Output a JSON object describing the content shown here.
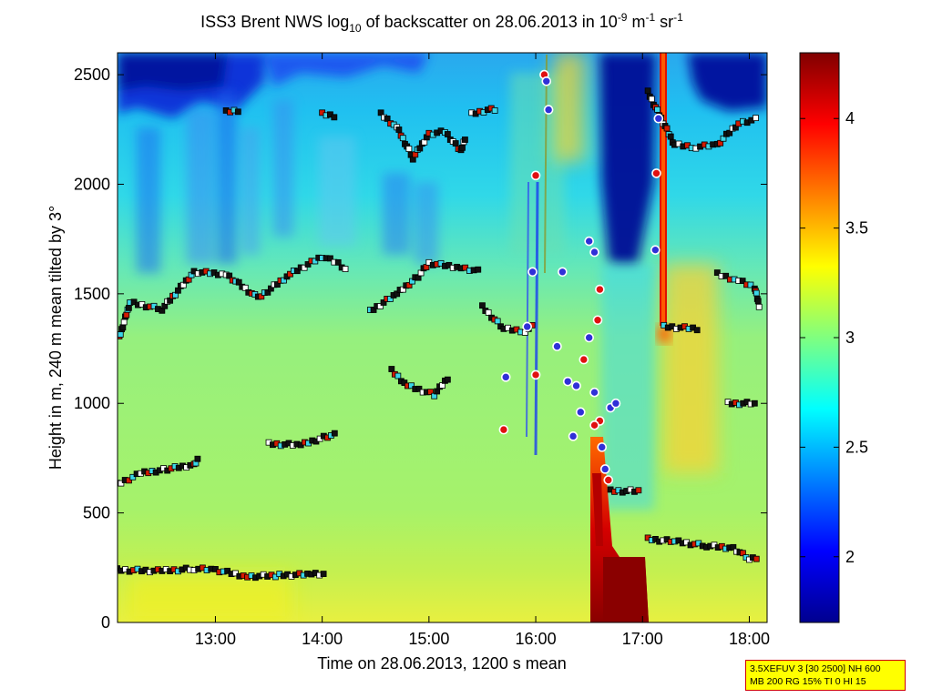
{
  "chart_data": {
    "type": "heatmap",
    "title_parts": {
      "pre": "ISS3 Brent NWS log",
      "sub": "10",
      "mid": " of backscatter on 28.06.2013 in 10",
      "sup1": "-9",
      "mid2": " m",
      "sup2": "-1",
      "end": " sr",
      "sup3": "-1"
    },
    "xlabel": "Time on 28.06.2013, 1200 s mean",
    "ylabel": "Height in m, 240 m mean tilted by 3°",
    "xlim": [
      "12:05",
      "18:10"
    ],
    "ylim": [
      0,
      2600
    ],
    "x_ticks": [
      "13:00",
      "14:00",
      "15:00",
      "16:00",
      "17:00",
      "18:00"
    ],
    "x_ticks_hours": [
      13,
      14,
      15,
      16,
      17,
      18
    ],
    "y_ticks": [
      0,
      500,
      1000,
      1500,
      2000,
      2500
    ],
    "colorbar": {
      "colormap": "jet",
      "range": [
        1.7,
        4.3
      ],
      "ticks": [
        2,
        2.5,
        3,
        3.5,
        4
      ]
    },
    "grid": false,
    "layer_tracks": [
      {
        "name": "",
        "points": [
          [
            12.08,
            240
          ],
          [
            12.5,
            235
          ],
          [
            12.8,
            245
          ],
          [
            13.0,
            240
          ],
          [
            13.3,
            210
          ],
          [
            13.6,
            215
          ],
          [
            13.9,
            220
          ],
          [
            14.05,
            218
          ]
        ]
      },
      {
        "name": "",
        "points": [
          [
            12.08,
            630
          ],
          [
            12.3,
            680
          ],
          [
            12.55,
            700
          ],
          [
            12.8,
            720
          ],
          [
            12.85,
            760
          ]
        ]
      },
      {
        "name": "",
        "points": [
          [
            13.5,
            815
          ],
          [
            13.8,
            810
          ],
          [
            14.05,
            850
          ],
          [
            14.15,
            860
          ]
        ]
      },
      {
        "name": "",
        "points": [
          [
            14.65,
            1150
          ],
          [
            14.8,
            1080
          ],
          [
            15.05,
            1040
          ],
          [
            15.15,
            1100
          ],
          [
            15.2,
            1130
          ]
        ]
      },
      {
        "name": "",
        "points": [
          [
            12.1,
            1300
          ],
          [
            12.2,
            1460
          ],
          [
            12.5,
            1430
          ],
          [
            12.8,
            1600
          ],
          [
            13.1,
            1590
          ],
          [
            13.4,
            1480
          ],
          [
            13.7,
            1590
          ],
          [
            14.0,
            1670
          ],
          [
            14.15,
            1640
          ],
          [
            14.25,
            1600
          ]
        ]
      },
      {
        "name": "",
        "points": [
          [
            14.45,
            1420
          ],
          [
            14.7,
            1500
          ],
          [
            14.9,
            1580
          ],
          [
            15.0,
            1640
          ],
          [
            15.3,
            1620
          ],
          [
            15.5,
            1600
          ]
        ]
      },
      {
        "name": "",
        "points": [
          [
            15.5,
            1440
          ],
          [
            15.7,
            1340
          ],
          [
            15.9,
            1330
          ],
          [
            16.0,
            1360
          ]
        ]
      },
      {
        "name": "",
        "points": [
          [
            14.55,
            2320
          ],
          [
            14.7,
            2260
          ],
          [
            14.85,
            2120
          ],
          [
            15.0,
            2230
          ],
          [
            15.15,
            2240
          ],
          [
            15.3,
            2150
          ],
          [
            15.35,
            2230
          ]
        ]
      },
      {
        "name": "",
        "points": [
          [
            15.4,
            2320
          ],
          [
            15.55,
            2340
          ],
          [
            15.65,
            2340
          ]
        ]
      },
      {
        "name": "",
        "points": [
          [
            16.7,
            600
          ],
          [
            17.0,
            600
          ]
        ]
      },
      {
        "name": "",
        "points": [
          [
            17.05,
            380
          ],
          [
            17.3,
            370
          ],
          [
            17.6,
            350
          ],
          [
            17.85,
            340
          ],
          [
            18.0,
            290
          ],
          [
            18.1,
            300
          ]
        ]
      },
      {
        "name": "",
        "points": [
          [
            17.2,
            1350
          ],
          [
            17.55,
            1340
          ]
        ]
      },
      {
        "name": "",
        "points": [
          [
            17.05,
            2420
          ],
          [
            17.3,
            2180
          ],
          [
            17.5,
            2170
          ],
          [
            17.7,
            2180
          ],
          [
            17.9,
            2280
          ],
          [
            18.1,
            2300
          ]
        ]
      },
      {
        "name": "",
        "points": [
          [
            17.7,
            1590
          ],
          [
            17.9,
            1560
          ],
          [
            18.05,
            1530
          ],
          [
            18.1,
            1430
          ]
        ]
      },
      {
        "name": "",
        "points": [
          [
            17.8,
            1000
          ],
          [
            18.05,
            1000
          ],
          [
            18.1,
            990
          ]
        ]
      },
      {
        "name": "",
        "points": [
          [
            13.1,
            2330
          ],
          [
            13.25,
            2340
          ]
        ]
      },
      {
        "name": "",
        "points": [
          [
            14.0,
            2320
          ],
          [
            14.15,
            2310
          ]
        ]
      }
    ],
    "cloud_points": [
      [
        16.08,
        2500
      ],
      [
        16.1,
        2470
      ],
      [
        16.12,
        2340
      ],
      [
        16.0,
        2040
      ],
      [
        15.97,
        1600
      ],
      [
        15.92,
        1350
      ],
      [
        16.0,
        1130
      ],
      [
        16.2,
        1260
      ],
      [
        16.3,
        1100
      ],
      [
        16.45,
        1200
      ],
      [
        16.5,
        1300
      ],
      [
        16.55,
        1050
      ],
      [
        16.6,
        920
      ],
      [
        16.62,
        800
      ],
      [
        16.65,
        700
      ],
      [
        16.68,
        650
      ],
      [
        16.5,
        1740
      ],
      [
        16.55,
        1690
      ],
      [
        16.6,
        1520
      ],
      [
        16.38,
        1080
      ],
      [
        16.42,
        960
      ],
      [
        16.55,
        900
      ],
      [
        16.7,
        980
      ],
      [
        16.75,
        1000
      ],
      [
        16.58,
        1380
      ],
      [
        16.35,
        850
      ],
      [
        15.72,
        1120
      ],
      [
        15.7,
        880
      ],
      [
        16.25,
        1600
      ],
      [
        17.15,
        2300
      ],
      [
        17.13,
        2050
      ],
      [
        17.12,
        1700
      ]
    ]
  },
  "info_box": {
    "line1": "3.5XEFUV 3 [30 2500] NH 600",
    "line2": "MB 200 RG 15% TI 0 HI 15"
  }
}
